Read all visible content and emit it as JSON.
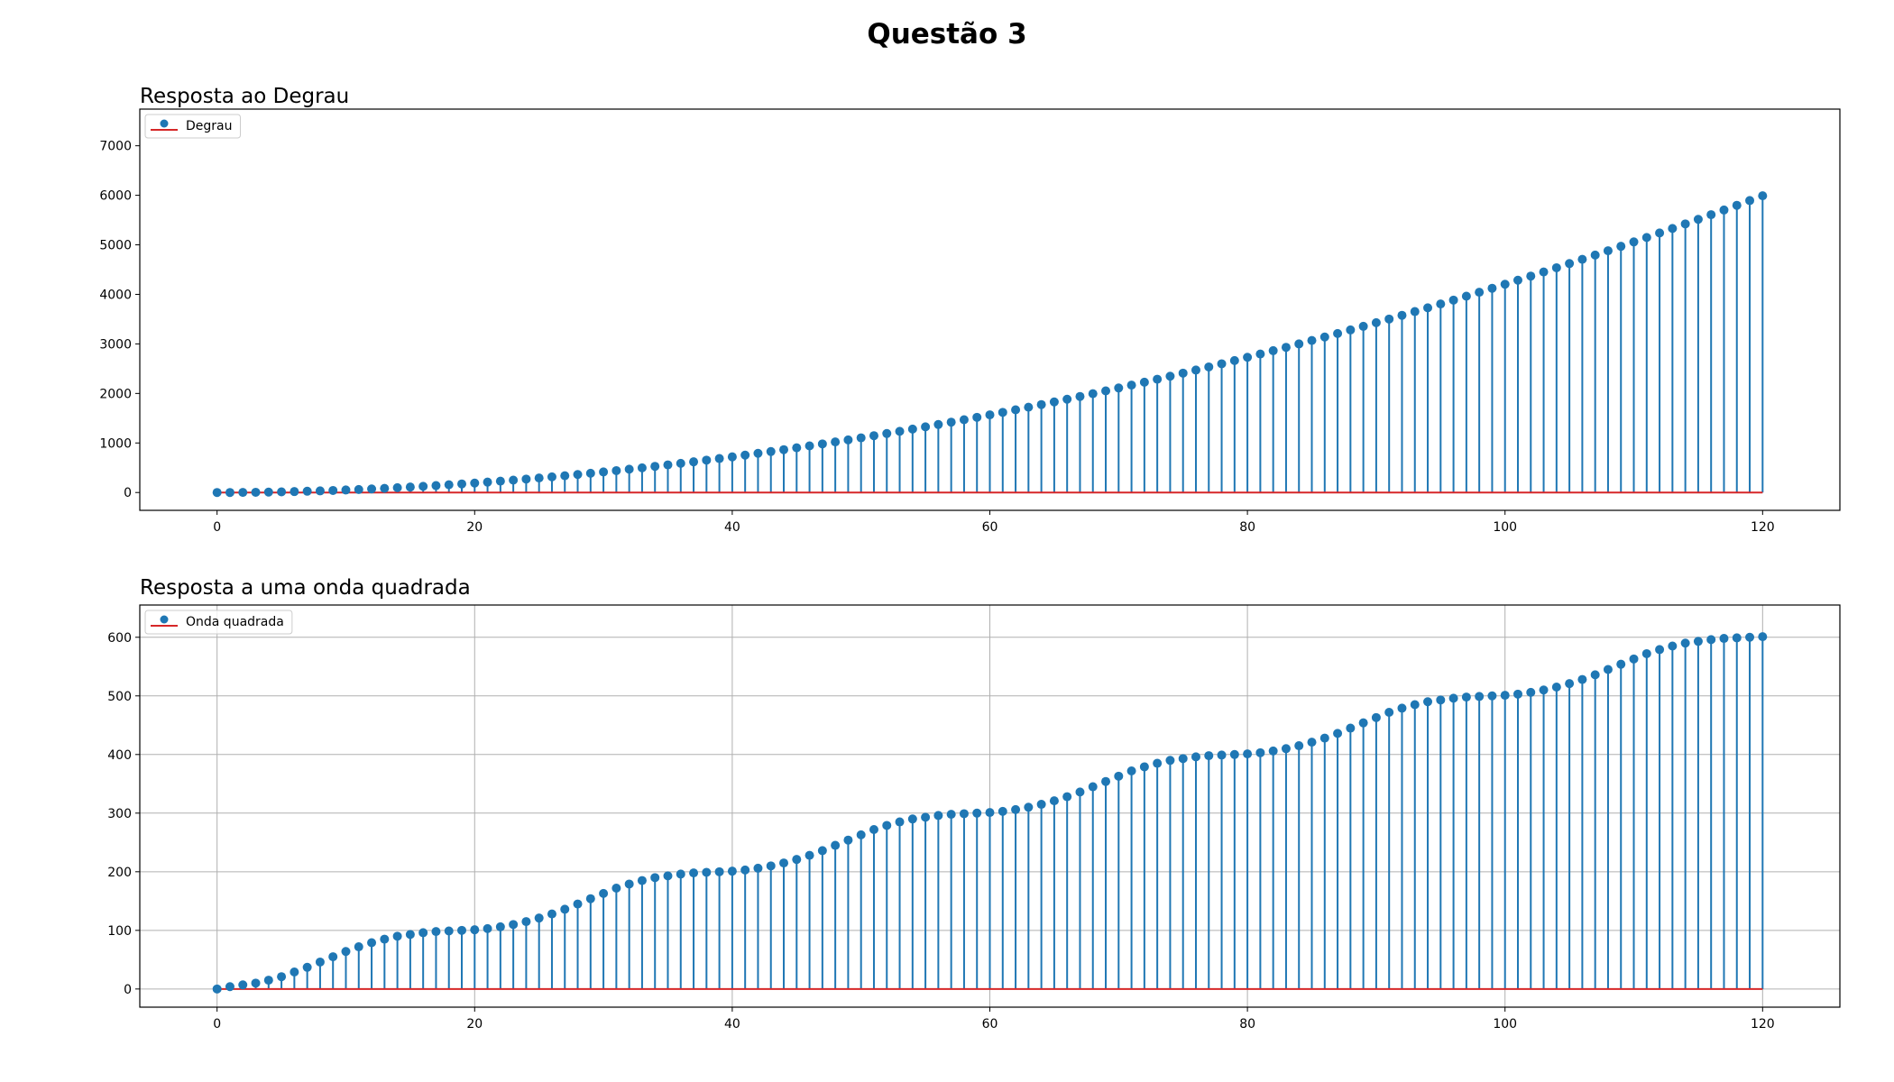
{
  "figure": {
    "title": "Questão 3"
  },
  "colors": {
    "stem": "#1f77b4",
    "marker": "#1f77b4",
    "baseline": "#d62728",
    "grid": "#b0b0b0",
    "axes": "#000000"
  },
  "chart_data": [
    {
      "type": "stem",
      "title": "Resposta ao Degrau",
      "xlabel": "",
      "ylabel": "",
      "xlim": [
        -6,
        126
      ],
      "ylim": [
        -360,
        7740
      ],
      "xticks": [
        0,
        20,
        40,
        60,
        80,
        100,
        120
      ],
      "yticks": [
        0,
        1000,
        2000,
        3000,
        4000,
        5000,
        6000,
        7000
      ],
      "grid": false,
      "legend": "upper-left",
      "series": [
        {
          "name": "Degrau",
          "x": [
            0,
            1,
            2,
            3,
            4,
            5,
            6,
            7,
            8,
            9,
            10,
            11,
            12,
            13,
            14,
            15,
            16,
            17,
            18,
            19,
            20,
            21,
            22,
            23,
            24,
            25,
            26,
            27,
            28,
            29,
            30,
            31,
            32,
            33,
            34,
            35,
            36,
            37,
            38,
            39,
            40,
            41,
            42,
            43,
            44,
            45,
            46,
            47,
            48,
            49,
            50,
            51,
            52,
            53,
            54,
            55,
            56,
            57,
            58,
            59,
            60,
            61,
            62,
            63,
            64,
            65,
            66,
            67,
            68,
            69,
            70,
            71,
            72,
            73,
            74,
            75,
            76,
            77,
            78,
            79,
            80,
            81,
            82,
            83,
            84,
            85,
            86,
            87,
            88,
            89,
            90,
            91,
            92,
            93,
            94,
            95,
            96,
            97,
            98,
            99,
            100,
            101,
            102,
            103,
            104,
            105,
            106,
            107,
            108,
            109,
            110,
            111,
            112,
            113,
            114,
            115,
            116,
            117,
            118,
            119,
            120
          ],
          "values": [
            0,
            0,
            2,
            5,
            9,
            13,
            19,
            26,
            33,
            41,
            51,
            61,
            72,
            84,
            97,
            110,
            125,
            140,
            156,
            173,
            191,
            210,
            229,
            250,
            271,
            293,
            316,
            339,
            364,
            389,
            415,
            442,
            470,
            498,
            528,
            558,
            589,
            620,
            653,
            686,
            720,
            755,
            791,
            827,
            865,
            903,
            941,
            981,
            1021,
            1062,
            1104,
            1147,
            1191,
            1235,
            1280,
            1326,
            1373,
            1420,
            1469,
            1518,
            1568,
            1618,
            1670,
            1722,
            1775,
            1829,
            1883,
            1939,
            1995,
            2052,
            2110,
            2168,
            2227,
            2287,
            2348,
            2410,
            2472,
            2535,
            2599,
            2664,
            2730,
            2796,
            2863,
            2931,
            3000,
            3069,
            3139,
            3210,
            3282,
            3355,
            3428,
            3502,
            3577,
            3653,
            3729,
            3806,
            3884,
            3963,
            4043,
            4123,
            4204,
            4286,
            4369,
            4452,
            4537,
            4622,
            4707,
            4794,
            4881,
            4970,
            5059,
            5148,
            5239,
            5330,
            5422,
            5515,
            5609,
            5703,
            5798,
            5894,
            5990
          ]
        }
      ]
    },
    {
      "type": "stem",
      "title": "Resposta a uma onda quadrada",
      "xlabel": "",
      "ylabel": "",
      "xlim": [
        -6,
        126
      ],
      "ylim": [
        -31,
        655
      ],
      "xticks": [
        0,
        20,
        40,
        60,
        80,
        100,
        120
      ],
      "yticks": [
        0,
        100,
        200,
        300,
        400,
        500,
        600
      ],
      "grid": true,
      "legend": "upper-left",
      "series": [
        {
          "name": "Onda quadrada",
          "x": [
            0,
            1,
            2,
            3,
            4,
            5,
            6,
            7,
            8,
            9,
            10,
            11,
            12,
            13,
            14,
            15,
            16,
            17,
            18,
            19,
            20,
            21,
            22,
            23,
            24,
            25,
            26,
            27,
            28,
            29,
            30,
            31,
            32,
            33,
            34,
            35,
            36,
            37,
            38,
            39,
            40,
            41,
            42,
            43,
            44,
            45,
            46,
            47,
            48,
            49,
            50,
            51,
            52,
            53,
            54,
            55,
            56,
            57,
            58,
            59,
            60,
            61,
            62,
            63,
            64,
            65,
            66,
            67,
            68,
            69,
            70,
            71,
            72,
            73,
            74,
            75,
            76,
            77,
            78,
            79,
            80,
            81,
            82,
            83,
            84,
            85,
            86,
            87,
            88,
            89,
            90,
            91,
            92,
            93,
            94,
            95,
            96,
            97,
            98,
            99,
            100,
            101,
            102,
            103,
            104,
            105,
            106,
            107,
            108,
            109,
            110,
            111,
            112,
            113,
            114,
            115,
            116,
            117,
            118,
            119,
            120
          ],
          "values": [
            0,
            4,
            7,
            10,
            15,
            21,
            29,
            37,
            46,
            55,
            64,
            72,
            79,
            85,
            90,
            93,
            96,
            98,
            99,
            100,
            101,
            103,
            106,
            110,
            115,
            121,
            128,
            136,
            145,
            154,
            163,
            172,
            179,
            185,
            190,
            193,
            196,
            198,
            199,
            200,
            201,
            203,
            206,
            210,
            215,
            221,
            228,
            236,
            245,
            254,
            263,
            272,
            279,
            285,
            290,
            293,
            296,
            298,
            299,
            300,
            301,
            303,
            306,
            310,
            315,
            321,
            328,
            336,
            345,
            354,
            363,
            372,
            379,
            385,
            390,
            393,
            396,
            398,
            399,
            400,
            401,
            403,
            406,
            410,
            415,
            421,
            428,
            436,
            445,
            454,
            463,
            472,
            479,
            485,
            490,
            493,
            496,
            498,
            499,
            500,
            501,
            503,
            506,
            510,
            515,
            521,
            528,
            536,
            545,
            554,
            563,
            572,
            579,
            585,
            590,
            593,
            596,
            598,
            599,
            600,
            601
          ]
        }
      ]
    }
  ]
}
